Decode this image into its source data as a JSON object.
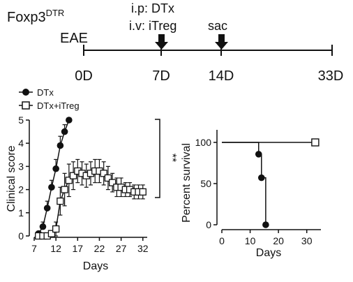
{
  "timeline": {
    "mouse_label": "Foxp3",
    "mouse_superscript": "DTR",
    "model_label": "EAE",
    "ip_label": "i.p: DTx",
    "iv_label": "i.v: iTreg",
    "sac_label": "sac",
    "ticks": [
      "0D",
      "7D",
      "14D",
      "33D"
    ]
  },
  "chart_data": [
    {
      "type": "line",
      "ylabel": "Clinical score",
      "xlabel": "Days",
      "xlim": [
        7,
        33
      ],
      "ylim": [
        0,
        5
      ],
      "x_ticks": [
        7,
        12,
        17,
        22,
        27,
        32
      ],
      "y_ticks": [
        0,
        1,
        2,
        3,
        4,
        5
      ],
      "legend": "top-left",
      "significance_label": "**",
      "series": [
        {
          "name": "DTx",
          "marker": "filled-circle",
          "x": [
            8,
            9,
            10,
            11,
            12,
            13,
            14,
            15
          ],
          "y": [
            0.1,
            0.4,
            1.2,
            2.1,
            2.9,
            3.9,
            4.5,
            5.0
          ],
          "err": [
            0.1,
            0.2,
            0.3,
            0.3,
            0.4,
            0.4,
            0.3,
            0
          ]
        },
        {
          "name": "DTx+iTreg",
          "marker": "open-square",
          "x": [
            8,
            9,
            10,
            11,
            12,
            13,
            14,
            15,
            16,
            17,
            18,
            19,
            20,
            21,
            22,
            23,
            24,
            25,
            26,
            27,
            28,
            29,
            30,
            31,
            32
          ],
          "y": [
            0.0,
            0.0,
            0.0,
            0.1,
            0.3,
            1.5,
            2.0,
            2.4,
            2.6,
            2.8,
            2.7,
            2.6,
            2.7,
            2.8,
            2.8,
            2.7,
            2.5,
            2.3,
            2.1,
            2.1,
            2.0,
            2.0,
            1.9,
            1.9,
            1.9
          ],
          "err": [
            0,
            0,
            0,
            0.1,
            0.3,
            0.6,
            0.7,
            0.7,
            0.6,
            0.5,
            0.5,
            0.5,
            0.5,
            0.5,
            0.5,
            0.5,
            0.5,
            0.4,
            0.4,
            0.4,
            0.3,
            0.3,
            0.3,
            0.3,
            0.3
          ]
        }
      ]
    },
    {
      "type": "line",
      "ylabel": "Percent survival",
      "xlabel": "Days",
      "xlim": [
        0,
        35
      ],
      "ylim": [
        0,
        100
      ],
      "x_ticks": [
        0,
        10,
        20,
        30
      ],
      "y_ticks": [
        0,
        50,
        100
      ],
      "series": [
        {
          "name": "DTx",
          "marker": "filled-circle",
          "step_x": [
            0,
            13,
            13,
            14,
            14,
            15.5,
            15.5
          ],
          "step_y": [
            100,
            100,
            85.7,
            85.7,
            57.1,
            57.1,
            0
          ],
          "points_x": [
            13,
            14,
            15.5
          ],
          "points_y": [
            85.7,
            57.1,
            0
          ]
        },
        {
          "name": "DTx+iTreg",
          "marker": "open-square",
          "step_x": [
            0,
            33
          ],
          "step_y": [
            100,
            100
          ],
          "points_x": [
            33
          ],
          "points_y": [
            100
          ]
        }
      ]
    }
  ]
}
